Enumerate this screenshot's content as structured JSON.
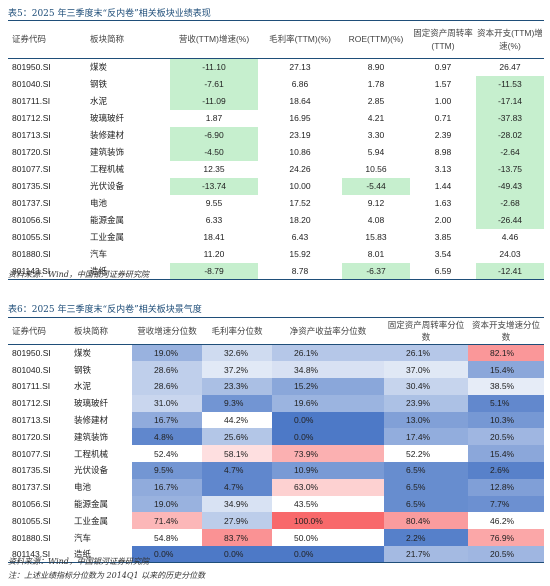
{
  "table1": {
    "caption": "表5：2025 年三季度末“反内卷”相关板块业绩表现",
    "headers": [
      "证券代码",
      "板块简称",
      "营收(TTM)增速(%)",
      "毛利率(TTM)(%)",
      "ROE(TTM)(%)",
      "固定资产周转率(TTM)",
      "资本开支(TTM)增速(%)"
    ],
    "rows": [
      {
        "code": "801950.SI",
        "name": "煤炭",
        "v": [
          "-11.10",
          "27.13",
          "8.90",
          "0.97",
          "26.47"
        ],
        "hl": [
          1,
          0,
          0,
          0,
          0
        ]
      },
      {
        "code": "801040.SI",
        "name": "钢铁",
        "v": [
          "-7.61",
          "6.86",
          "1.78",
          "1.57",
          "-11.53"
        ],
        "hl": [
          1,
          0,
          0,
          0,
          1
        ]
      },
      {
        "code": "801711.SI",
        "name": "水泥",
        "v": [
          "-11.09",
          "18.64",
          "2.85",
          "1.00",
          "-17.14"
        ],
        "hl": [
          1,
          0,
          0,
          0,
          1
        ]
      },
      {
        "code": "801712.SI",
        "name": "玻璃玻纤",
        "v": [
          "1.87",
          "16.95",
          "4.21",
          "0.71",
          "-37.83"
        ],
        "hl": [
          0,
          0,
          0,
          0,
          1
        ]
      },
      {
        "code": "801713.SI",
        "name": "装修建材",
        "v": [
          "-6.90",
          "23.19",
          "3.30",
          "2.39",
          "-28.02"
        ],
        "hl": [
          1,
          0,
          0,
          0,
          1
        ]
      },
      {
        "code": "801720.SI",
        "name": "建筑装饰",
        "v": [
          "-4.50",
          "10.86",
          "5.94",
          "8.98",
          "-2.64"
        ],
        "hl": [
          1,
          0,
          0,
          0,
          1
        ]
      },
      {
        "code": "801077.SI",
        "name": "工程机械",
        "v": [
          "12.35",
          "24.26",
          "10.56",
          "3.13",
          "-13.75"
        ],
        "hl": [
          0,
          0,
          0,
          0,
          1
        ]
      },
      {
        "code": "801735.SI",
        "name": "光伏设备",
        "v": [
          "-13.74",
          "10.00",
          "-5.44",
          "1.44",
          "-49.43"
        ],
        "hl": [
          1,
          0,
          1,
          0,
          1
        ]
      },
      {
        "code": "801737.SI",
        "name": "电池",
        "v": [
          "9.55",
          "17.52",
          "9.12",
          "1.63",
          "-2.68"
        ],
        "hl": [
          0,
          0,
          0,
          0,
          1
        ]
      },
      {
        "code": "801056.SI",
        "name": "能源金属",
        "v": [
          "6.33",
          "18.20",
          "4.08",
          "2.00",
          "-26.44"
        ],
        "hl": [
          0,
          0,
          0,
          0,
          1
        ]
      },
      {
        "code": "801055.SI",
        "name": "工业金属",
        "v": [
          "18.41",
          "6.43",
          "15.83",
          "3.85",
          "4.46"
        ],
        "hl": [
          0,
          0,
          0,
          0,
          0
        ]
      },
      {
        "code": "801880.SI",
        "name": "汽车",
        "v": [
          "11.20",
          "15.92",
          "8.01",
          "3.54",
          "24.03"
        ],
        "hl": [
          0,
          0,
          0,
          0,
          0
        ]
      },
      {
        "code": "801143.SI",
        "name": "造纸",
        "v": [
          "-8.79",
          "8.78",
          "-6.37",
          "6.59",
          "-12.41"
        ],
        "hl": [
          1,
          0,
          1,
          0,
          1
        ]
      }
    ],
    "source": "资料来源：Wind，中国银河证券研究院"
  },
  "table2": {
    "caption": "表6：2025 年三季度末“反内卷”相关板块景气度",
    "headers": [
      "证券代码",
      "板块简称",
      "营收增速分位数",
      "毛利率分位数",
      "净资产收益率分位数",
      "固定资产周转率分位数",
      "资本开支增速分位数"
    ],
    "rows": [
      {
        "code": "801950.SI",
        "name": "煤炭",
        "v": [
          "19.0%",
          "32.6%",
          "26.1%",
          "26.1%",
          "82.1%"
        ]
      },
      {
        "code": "801040.SI",
        "name": "钢铁",
        "v": [
          "28.6%",
          "37.2%",
          "34.8%",
          "37.0%",
          "15.4%"
        ]
      },
      {
        "code": "801711.SI",
        "name": "水泥",
        "v": [
          "28.6%",
          "23.3%",
          "15.2%",
          "30.4%",
          "38.5%"
        ]
      },
      {
        "code": "801712.SI",
        "name": "玻璃玻纤",
        "v": [
          "31.0%",
          "9.3%",
          "19.6%",
          "23.9%",
          "5.1%"
        ]
      },
      {
        "code": "801713.SI",
        "name": "装修建材",
        "v": [
          "16.7%",
          "44.2%",
          "0.0%",
          "13.0%",
          "10.3%"
        ]
      },
      {
        "code": "801720.SI",
        "name": "建筑装饰",
        "v": [
          "4.8%",
          "25.6%",
          "0.0%",
          "17.4%",
          "20.5%"
        ]
      },
      {
        "code": "801077.SI",
        "name": "工程机械",
        "v": [
          "52.4%",
          "58.1%",
          "73.9%",
          "52.2%",
          "15.4%"
        ]
      },
      {
        "code": "801735.SI",
        "name": "光伏设备",
        "v": [
          "9.5%",
          "4.7%",
          "10.9%",
          "6.5%",
          "2.6%"
        ]
      },
      {
        "code": "801737.SI",
        "name": "电池",
        "v": [
          "16.7%",
          "4.7%",
          "63.0%",
          "6.5%",
          "12.8%"
        ]
      },
      {
        "code": "801056.SI",
        "name": "能源金属",
        "v": [
          "19.0%",
          "34.9%",
          "43.5%",
          "6.5%",
          "7.7%"
        ]
      },
      {
        "code": "801055.SI",
        "name": "工业金属",
        "v": [
          "71.4%",
          "27.9%",
          "100.0%",
          "80.4%",
          "46.2%"
        ]
      },
      {
        "code": "801880.SI",
        "name": "汽车",
        "v": [
          "54.8%",
          "83.7%",
          "50.0%",
          "2.2%",
          "76.9%"
        ]
      },
      {
        "code": "801143.SI",
        "name": "造纸",
        "v": [
          "0.0%",
          "0.0%",
          "0.0%",
          "21.7%",
          "20.5%"
        ]
      }
    ],
    "source": "资料来源：Wind，中国银河证券研究院",
    "note": "注：上述业绩指标分位数为 2014Q1 以来的历史分位数"
  },
  "colors": {
    "caption": "#1f4e79",
    "green_highlight": "#c6efce",
    "heat_low": "#4472c4",
    "heat_mid": "#ffffff",
    "heat_high": "#f8696b"
  }
}
